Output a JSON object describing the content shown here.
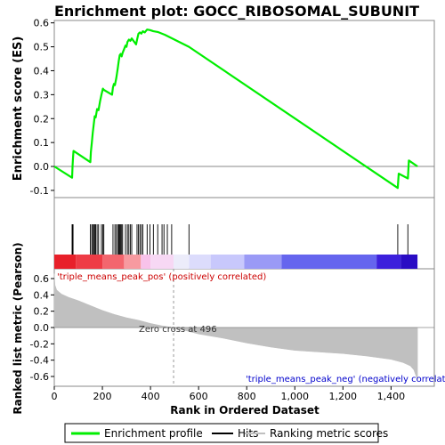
{
  "chart_data": {
    "type": "line",
    "title": "Enrichment plot: GOCC_RIBOSOMAL_SUBUNIT",
    "es_panel": {
      "ylabel": "Enrichment score (ES)",
      "ylim": [
        -0.13,
        0.61
      ],
      "yticks": [
        -0.1,
        0.0,
        0.1,
        0.2,
        0.3,
        0.4,
        0.5,
        0.6
      ],
      "ytick_labels": [
        "-0.1",
        "0.0",
        "0.1",
        "0.2",
        "0.3",
        "0.4",
        "0.5",
        "0.6"
      ],
      "series": [
        {
          "name": "Enrichment profile",
          "color": "#00ee00",
          "x": [
            0,
            74,
            76,
            78,
            80,
            150,
            152,
            156,
            160,
            164,
            168,
            172,
            178,
            184,
            190,
            196,
            202,
            206,
            240,
            244,
            248,
            252,
            258,
            264,
            268,
            272,
            276,
            280,
            284,
            290,
            296,
            300,
            304,
            310,
            316,
            322,
            340,
            344,
            350,
            356,
            362,
            368,
            376,
            386,
            398,
            412,
            430,
            460,
            560,
            1428,
            1432,
            1470,
            1474,
            1510
          ],
          "y": [
            0.0,
            -0.047,
            0.0,
            0.04,
            0.065,
            0.018,
            0.06,
            0.1,
            0.14,
            0.175,
            0.21,
            0.205,
            0.24,
            0.235,
            0.27,
            0.3,
            0.325,
            0.32,
            0.3,
            0.33,
            0.345,
            0.34,
            0.37,
            0.41,
            0.44,
            0.465,
            0.47,
            0.46,
            0.475,
            0.49,
            0.505,
            0.5,
            0.52,
            0.53,
            0.525,
            0.535,
            0.51,
            0.53,
            0.555,
            0.56,
            0.555,
            0.565,
            0.56,
            0.572,
            0.57,
            0.565,
            0.562,
            0.55,
            0.5,
            -0.09,
            -0.03,
            -0.05,
            0.025,
            0.0
          ]
        }
      ]
    },
    "hits_panel": {
      "legend_label": "Hits",
      "hit_ranks": [
        74,
        76,
        78,
        150,
        156,
        160,
        164,
        168,
        172,
        178,
        184,
        196,
        202,
        206,
        244,
        252,
        258,
        264,
        268,
        272,
        276,
        280,
        284,
        296,
        304,
        310,
        316,
        322,
        344,
        350,
        356,
        362,
        368,
        386,
        398,
        412,
        430,
        448,
        456,
        470,
        488,
        560,
        1428,
        1470
      ]
    },
    "ranked_panel": {
      "ylabel": "Ranked list metric (Pearson)",
      "xlabel": "Rank in Ordered Dataset",
      "ylim": [
        -0.72,
        0.72
      ],
      "yticks": [
        -0.6,
        -0.4,
        -0.2,
        0.0,
        0.2,
        0.4,
        0.6
      ],
      "ytick_labels": [
        "-0.6",
        "-0.4",
        "-0.2",
        "0.0",
        "0.2",
        "0.4",
        "0.6"
      ],
      "xlim": [
        0,
        1580
      ],
      "xticks": [
        0,
        200,
        400,
        600,
        800,
        1000,
        1200,
        1400
      ],
      "xtick_labels": [
        "0",
        "200",
        "400",
        "600",
        "800",
        "1,000",
        "1,200",
        "1,400"
      ],
      "legend_label": "Ranking metric scores",
      "color": "#c0c0c0",
      "metric": {
        "x": [
          0,
          3,
          10,
          30,
          60,
          100,
          150,
          200,
          250,
          300,
          350,
          400,
          450,
          496,
          550,
          600,
          700,
          800,
          900,
          1000,
          1100,
          1200,
          1300,
          1400,
          1450,
          1480,
          1495,
          1505,
          1510
        ],
        "y": [
          0.66,
          0.52,
          0.46,
          0.41,
          0.37,
          0.33,
          0.27,
          0.21,
          0.16,
          0.12,
          0.09,
          0.05,
          0.02,
          0.0,
          -0.04,
          -0.08,
          -0.13,
          -0.19,
          -0.24,
          -0.28,
          -0.3,
          -0.32,
          -0.35,
          -0.39,
          -0.43,
          -0.47,
          -0.52,
          -0.6,
          -0.66
        ]
      },
      "annotations": {
        "pos_label": "'triple_means_peak_pos' (positively correlated)",
        "neg_label": "'triple_means_peak_neg' (negatively correlated)",
        "zero_cross": "Zero cross at 496",
        "zero_cross_rank": 496
      }
    },
    "colorbar": {
      "segments": [
        {
          "x0": 0,
          "x1": 90,
          "color": "#e8202a"
        },
        {
          "x0": 90,
          "x1": 200,
          "color": "#ee3c46"
        },
        {
          "x0": 200,
          "x1": 290,
          "color": "#f3666e"
        },
        {
          "x0": 290,
          "x1": 360,
          "color": "#f79aa0"
        },
        {
          "x0": 360,
          "x1": 400,
          "color": "#f8c2ea"
        },
        {
          "x0": 400,
          "x1": 496,
          "color": "#f7d8f4"
        },
        {
          "x0": 496,
          "x1": 560,
          "color": "#ececfa"
        },
        {
          "x0": 560,
          "x1": 650,
          "color": "#dcdcfc"
        },
        {
          "x0": 650,
          "x1": 790,
          "color": "#c8c8fc"
        },
        {
          "x0": 790,
          "x1": 945,
          "color": "#9a9af6"
        },
        {
          "x0": 945,
          "x1": 1340,
          "color": "#6565ee"
        },
        {
          "x0": 1340,
          "x1": 1440,
          "color": "#3c20dc"
        },
        {
          "x0": 1440,
          "x1": 1510,
          "color": "#2a0cc4"
        }
      ]
    },
    "legend": {
      "items": [
        {
          "label": "Enrichment profile",
          "color": "#00ee00"
        },
        {
          "label": "Hits",
          "color": "#000000"
        },
        {
          "label": "Ranking metric scores",
          "color": "#c0c0c0"
        }
      ]
    }
  }
}
